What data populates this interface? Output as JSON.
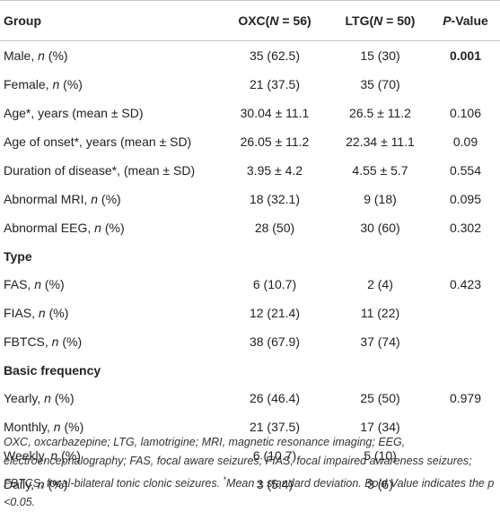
{
  "header": {
    "group": "Group",
    "oxc_prefix": "OXC(",
    "oxc_n": "N",
    "oxc_suffix": " = 56)",
    "ltg_prefix": "LTG(",
    "ltg_n": "N",
    "ltg_suffix": " = 50)",
    "p_italic": "P",
    "p_suffix": "-Value"
  },
  "rows": [
    {
      "label": "Male, ",
      "label_italic": "n",
      "label_tail": " (%)",
      "oxc": "35 (62.5)",
      "ltg": "15 (30)",
      "p": "0.001",
      "p_bold": true
    },
    {
      "label": "Female, ",
      "label_italic": "n",
      "label_tail": " (%)",
      "oxc": "21 (37.5)",
      "ltg": "35 (70)",
      "p": ""
    },
    {
      "label": "Age*, years (mean ± SD)",
      "oxc": "30.04 ± 11.1",
      "ltg": "26.5 ± 11.2",
      "p": "0.106"
    },
    {
      "label": "Age of onset*, years (mean ± SD)",
      "oxc": "26.05 ± 11.2",
      "ltg": "22.34 ± 11.1",
      "p": "0.09"
    },
    {
      "label": "Duration of disease*, (mean ± SD)",
      "oxc": "3.95 ± 4.2",
      "ltg": "4.55 ± 5.7",
      "p": "0.554"
    },
    {
      "label": "Abnormal MRI, ",
      "label_italic": "n",
      "label_tail": " (%)",
      "oxc": "18 (32.1)",
      "ltg": "9 (18)",
      "p": "0.095"
    },
    {
      "label": "Abnormal EEG, ",
      "label_italic": "n",
      "label_tail": " (%)",
      "oxc": "28 (50)",
      "ltg": "30 (60)",
      "p": "0.302"
    },
    {
      "section": "Type"
    },
    {
      "label": "FAS, ",
      "label_italic": "n",
      "label_tail": " (%)",
      "oxc": "6 (10.7)",
      "ltg": "2 (4)",
      "p": "0.423"
    },
    {
      "label": "FIAS, ",
      "label_italic": "n",
      "label_tail": " (%)",
      "oxc": "12 (21.4)",
      "ltg": "11 (22)",
      "p": ""
    },
    {
      "label": "FBTCS, ",
      "label_italic": "n",
      "label_tail": " (%)",
      "oxc": "38 (67.9)",
      "ltg": "37 (74)",
      "p": ""
    },
    {
      "section": "Basic frequency"
    },
    {
      "label": "Yearly, ",
      "label_italic": "n",
      "label_tail": " (%)",
      "oxc": "26 (46.4)",
      "ltg": "25 (50)",
      "p": "0.979"
    },
    {
      "label": "Monthly, ",
      "label_italic": "n",
      "label_tail": " (%)",
      "oxc": "21 (37.5)",
      "ltg": "17 (34)",
      "p": ""
    },
    {
      "label": "Weekly, ",
      "label_italic": "n",
      "label_tail": " (%)",
      "oxc": "6 (10.7)",
      "ltg": "5 (10)",
      "p": ""
    },
    {
      "label": "Daily, ",
      "label_italic": "n",
      "label_tail": " (%)",
      "oxc": "3 (5.4)",
      "ltg": "3 (6)",
      "p": ""
    }
  ],
  "footnote": {
    "main": "OXC, oxcarbazepine; LTG, lamotrigine; MRI, magnetic resonance imaging; EEG, electroencephalography; FAS, focal aware seizures; FIAS, focal impaired awareness seizures; FBTCS, focal-bilateral tonic clonic seizures. ",
    "star": "*",
    "tail": "Mean ± standard deviation. Bold Value indicates the p <0.05."
  }
}
